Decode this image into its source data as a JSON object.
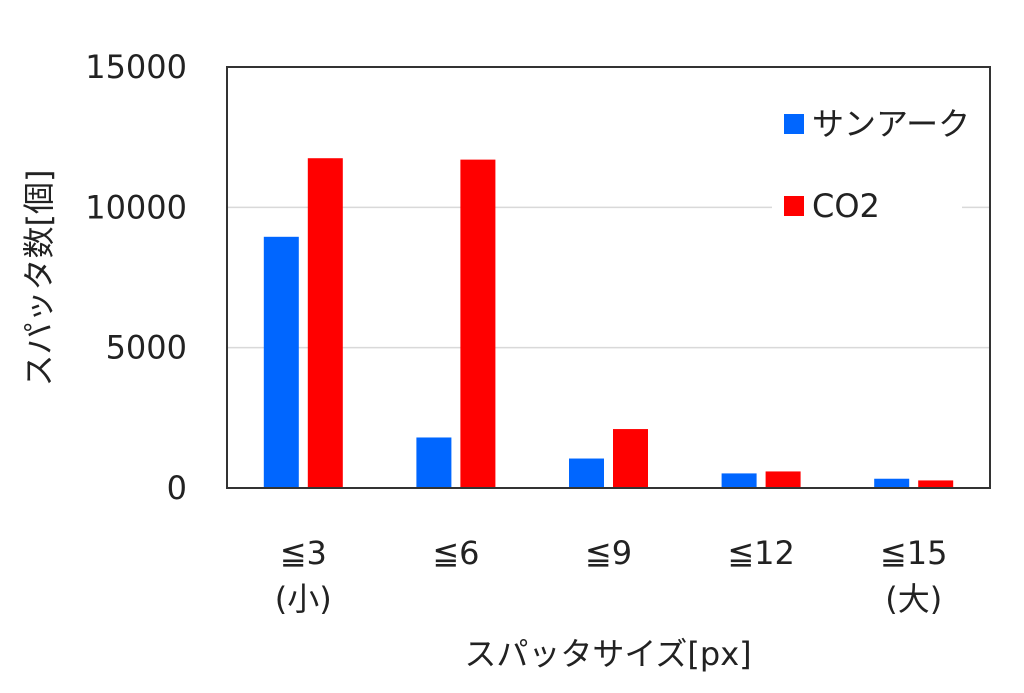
{
  "chart_data": {
    "type": "bar",
    "categories": [
      "≦3",
      "≦6",
      "≦9",
      "≦12",
      "≦15"
    ],
    "category_sublabels": [
      "(小)",
      "",
      "",
      "",
      "(大)"
    ],
    "series": [
      {
        "name": "サンアーク",
        "color": "#0066FF",
        "values": [
          8950,
          1800,
          1050,
          520,
          330
        ]
      },
      {
        "name": "CO2",
        "color": "#FF0000",
        "values": [
          11750,
          11700,
          2100,
          590,
          270
        ]
      }
    ],
    "xlabel": "スパッタサイズ[px]",
    "ylabel": "スパッタ数[個]",
    "ylim": [
      0,
      15000
    ],
    "yticks": [
      0,
      5000,
      10000,
      15000
    ],
    "grid": true,
    "legend_position": "top-right"
  }
}
